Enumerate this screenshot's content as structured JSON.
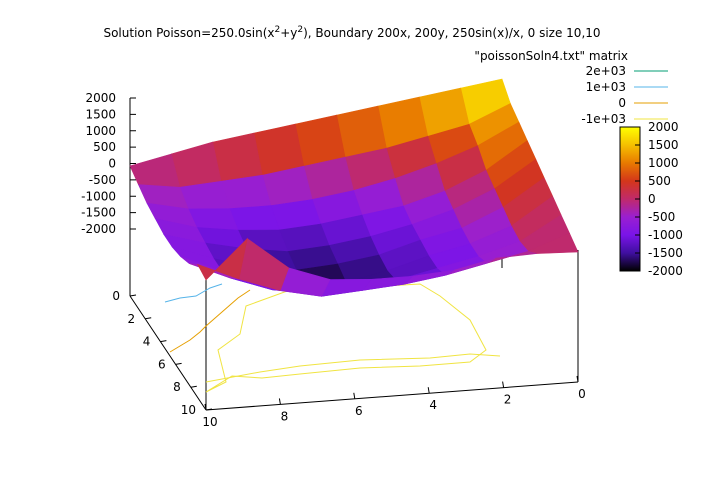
{
  "chart_data": {
    "type": "surface3d",
    "title_main": "Solution Poisson=250.0sin(x",
    "title_sup1": "2",
    "title_mid": "+y",
    "title_sup2": "2",
    "title_end": "), Boundary 200x, 200y, 250sin(x)/x, 0 size 10,10",
    "plot_name": "\"poissonSoln4.txt\" matrix",
    "grid_size": 10,
    "x_ticks": [
      "0",
      "2",
      "4",
      "6",
      "8",
      "10"
    ],
    "y_ticks": [
      "0",
      "2",
      "4",
      "6",
      "8",
      "10"
    ],
    "z_ticks": [
      "2000",
      "1500",
      "1000",
      "500",
      "0",
      "-500",
      "-1000",
      "-1500",
      "-2000"
    ],
    "zlim": [
      -2000,
      2000
    ],
    "colorbar_ticks": [
      "2000",
      "1500",
      "1000",
      "500",
      "0",
      "-500",
      "-1000",
      "-1500",
      "-2000"
    ],
    "contour_legend": [
      {
        "label": "2e+03",
        "color": "#009e73"
      },
      {
        "label": "1e+03",
        "color": "#56b4e9"
      },
      {
        "label": "0",
        "color": "#e69f00"
      },
      {
        "label": "-1e+03",
        "color": "#f0e442"
      }
    ],
    "palette": [
      "#000000",
      "#3f0fa0",
      "#7a14e8",
      "#9a1fd0",
      "#c02a6a",
      "#d4361a",
      "#e87a00",
      "#f5c000",
      "#ffff00"
    ],
    "values": [
      [
        2000,
        1600,
        1400,
        1200,
        1000,
        800,
        600,
        400,
        200,
        0
      ],
      [
        1800,
        1000,
        700,
        300,
        100,
        -100,
        -300,
        -400,
        -300,
        50
      ],
      [
        1600,
        700,
        200,
        -300,
        -500,
        -700,
        -800,
        -800,
        -600,
        0
      ],
      [
        1400,
        400,
        -200,
        -700,
        -900,
        -1000,
        -1100,
        -1100,
        -900,
        -300
      ],
      [
        1200,
        200,
        -500,
        -900,
        -1200,
        -1400,
        -1500,
        -1400,
        -1100,
        -400
      ],
      [
        1000,
        0,
        -700,
        -1100,
        -1400,
        -1600,
        -1800,
        -1600,
        -1200,
        -400
      ],
      [
        800,
        -200,
        -800,
        -1200,
        -1500,
        -1700,
        -1800,
        -1600,
        -1300,
        -300
      ],
      [
        600,
        -300,
        -800,
        -1100,
        -1300,
        -1500,
        -1500,
        -1400,
        -1000,
        200
      ],
      [
        300,
        -400,
        -700,
        -900,
        -1000,
        -1100,
        -1100,
        -900,
        -500,
        1300
      ],
      [
        0,
        -200,
        -400,
        -500,
        -600,
        -600,
        -500,
        -300,
        100,
        0
      ]
    ]
  }
}
